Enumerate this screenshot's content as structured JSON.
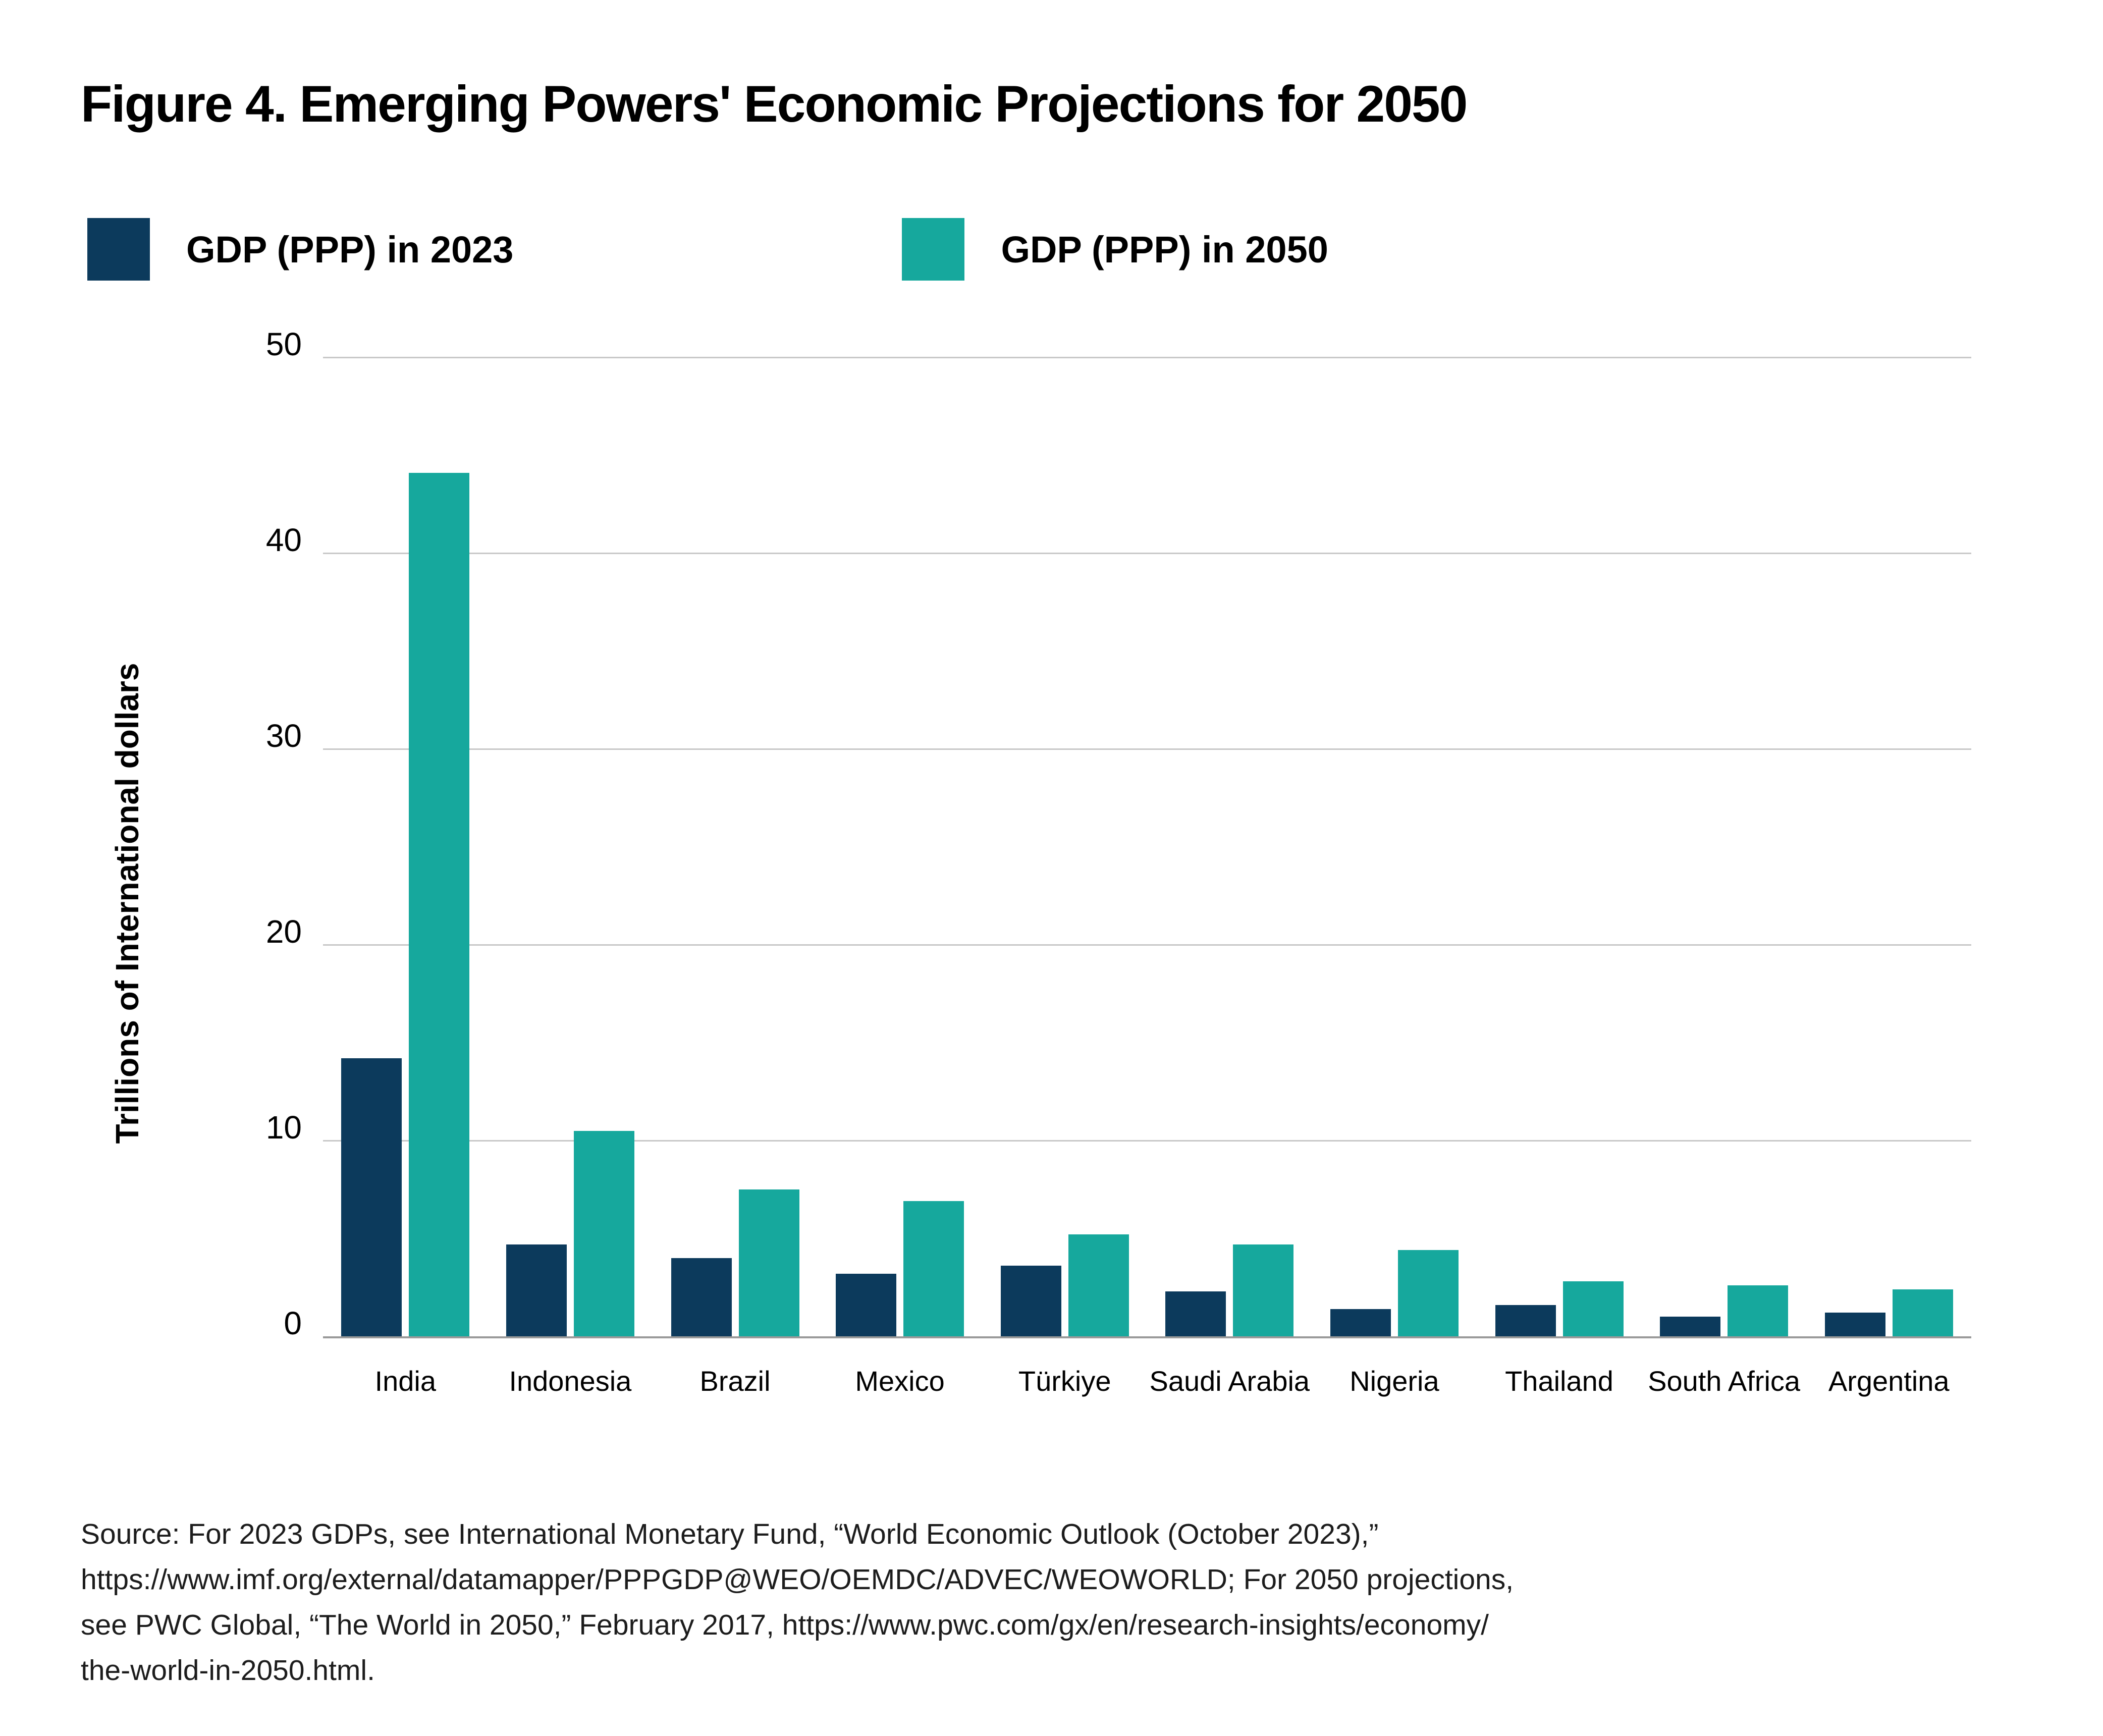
{
  "figure": {
    "title": "Figure 4. Emerging Powers' Economic Projections for 2050"
  },
  "footer": {
    "lines": [
      "Source: For 2023 GDPs, see International Monetary Fund, “World Economic Outlook (October 2023),”",
      "https://www.imf.org/external/datamapper/PPPGDP@WEO/OEMDC/ADVEC/WEOWORLD; For 2050 projections,",
      "see PWC Global, “The World in 2050,” February 2017, https://www.pwc.com/gx/en/research-insights/economy/",
      "the-world-in-2050.html."
    ]
  },
  "chart_data": {
    "type": "bar",
    "title": "Figure 4. Emerging Powers' Economic Projections for 2050",
    "categories": [
      "India",
      "Indonesia",
      "Brazil",
      "Mexico",
      "Türkiye",
      "Saudi Arabia",
      "Nigeria",
      "Thailand",
      "South Africa",
      "Argentina"
    ],
    "series": [
      {
        "name": "GDP (PPP) in 2023",
        "color": "#0c3a5c",
        "values": [
          14.2,
          4.7,
          4.0,
          3.2,
          3.6,
          2.3,
          1.4,
          1.6,
          1.0,
          1.2
        ]
      },
      {
        "name": "GDP (PPP) in 2050",
        "color": "#16a89d",
        "values": [
          44.1,
          10.5,
          7.5,
          6.9,
          5.2,
          4.7,
          4.4,
          2.8,
          2.6,
          2.4
        ]
      }
    ],
    "xlabel": "",
    "ylabel": "Trillions of International dollars",
    "ylim": [
      0,
      50
    ],
    "yticks": [
      0,
      10,
      20,
      30,
      40,
      50
    ],
    "grid": true,
    "gridline_color": "#c8c8c8",
    "axis_line_color": "#9a9a9a",
    "legend_position": "top-left",
    "background_color": "#ffffff"
  }
}
